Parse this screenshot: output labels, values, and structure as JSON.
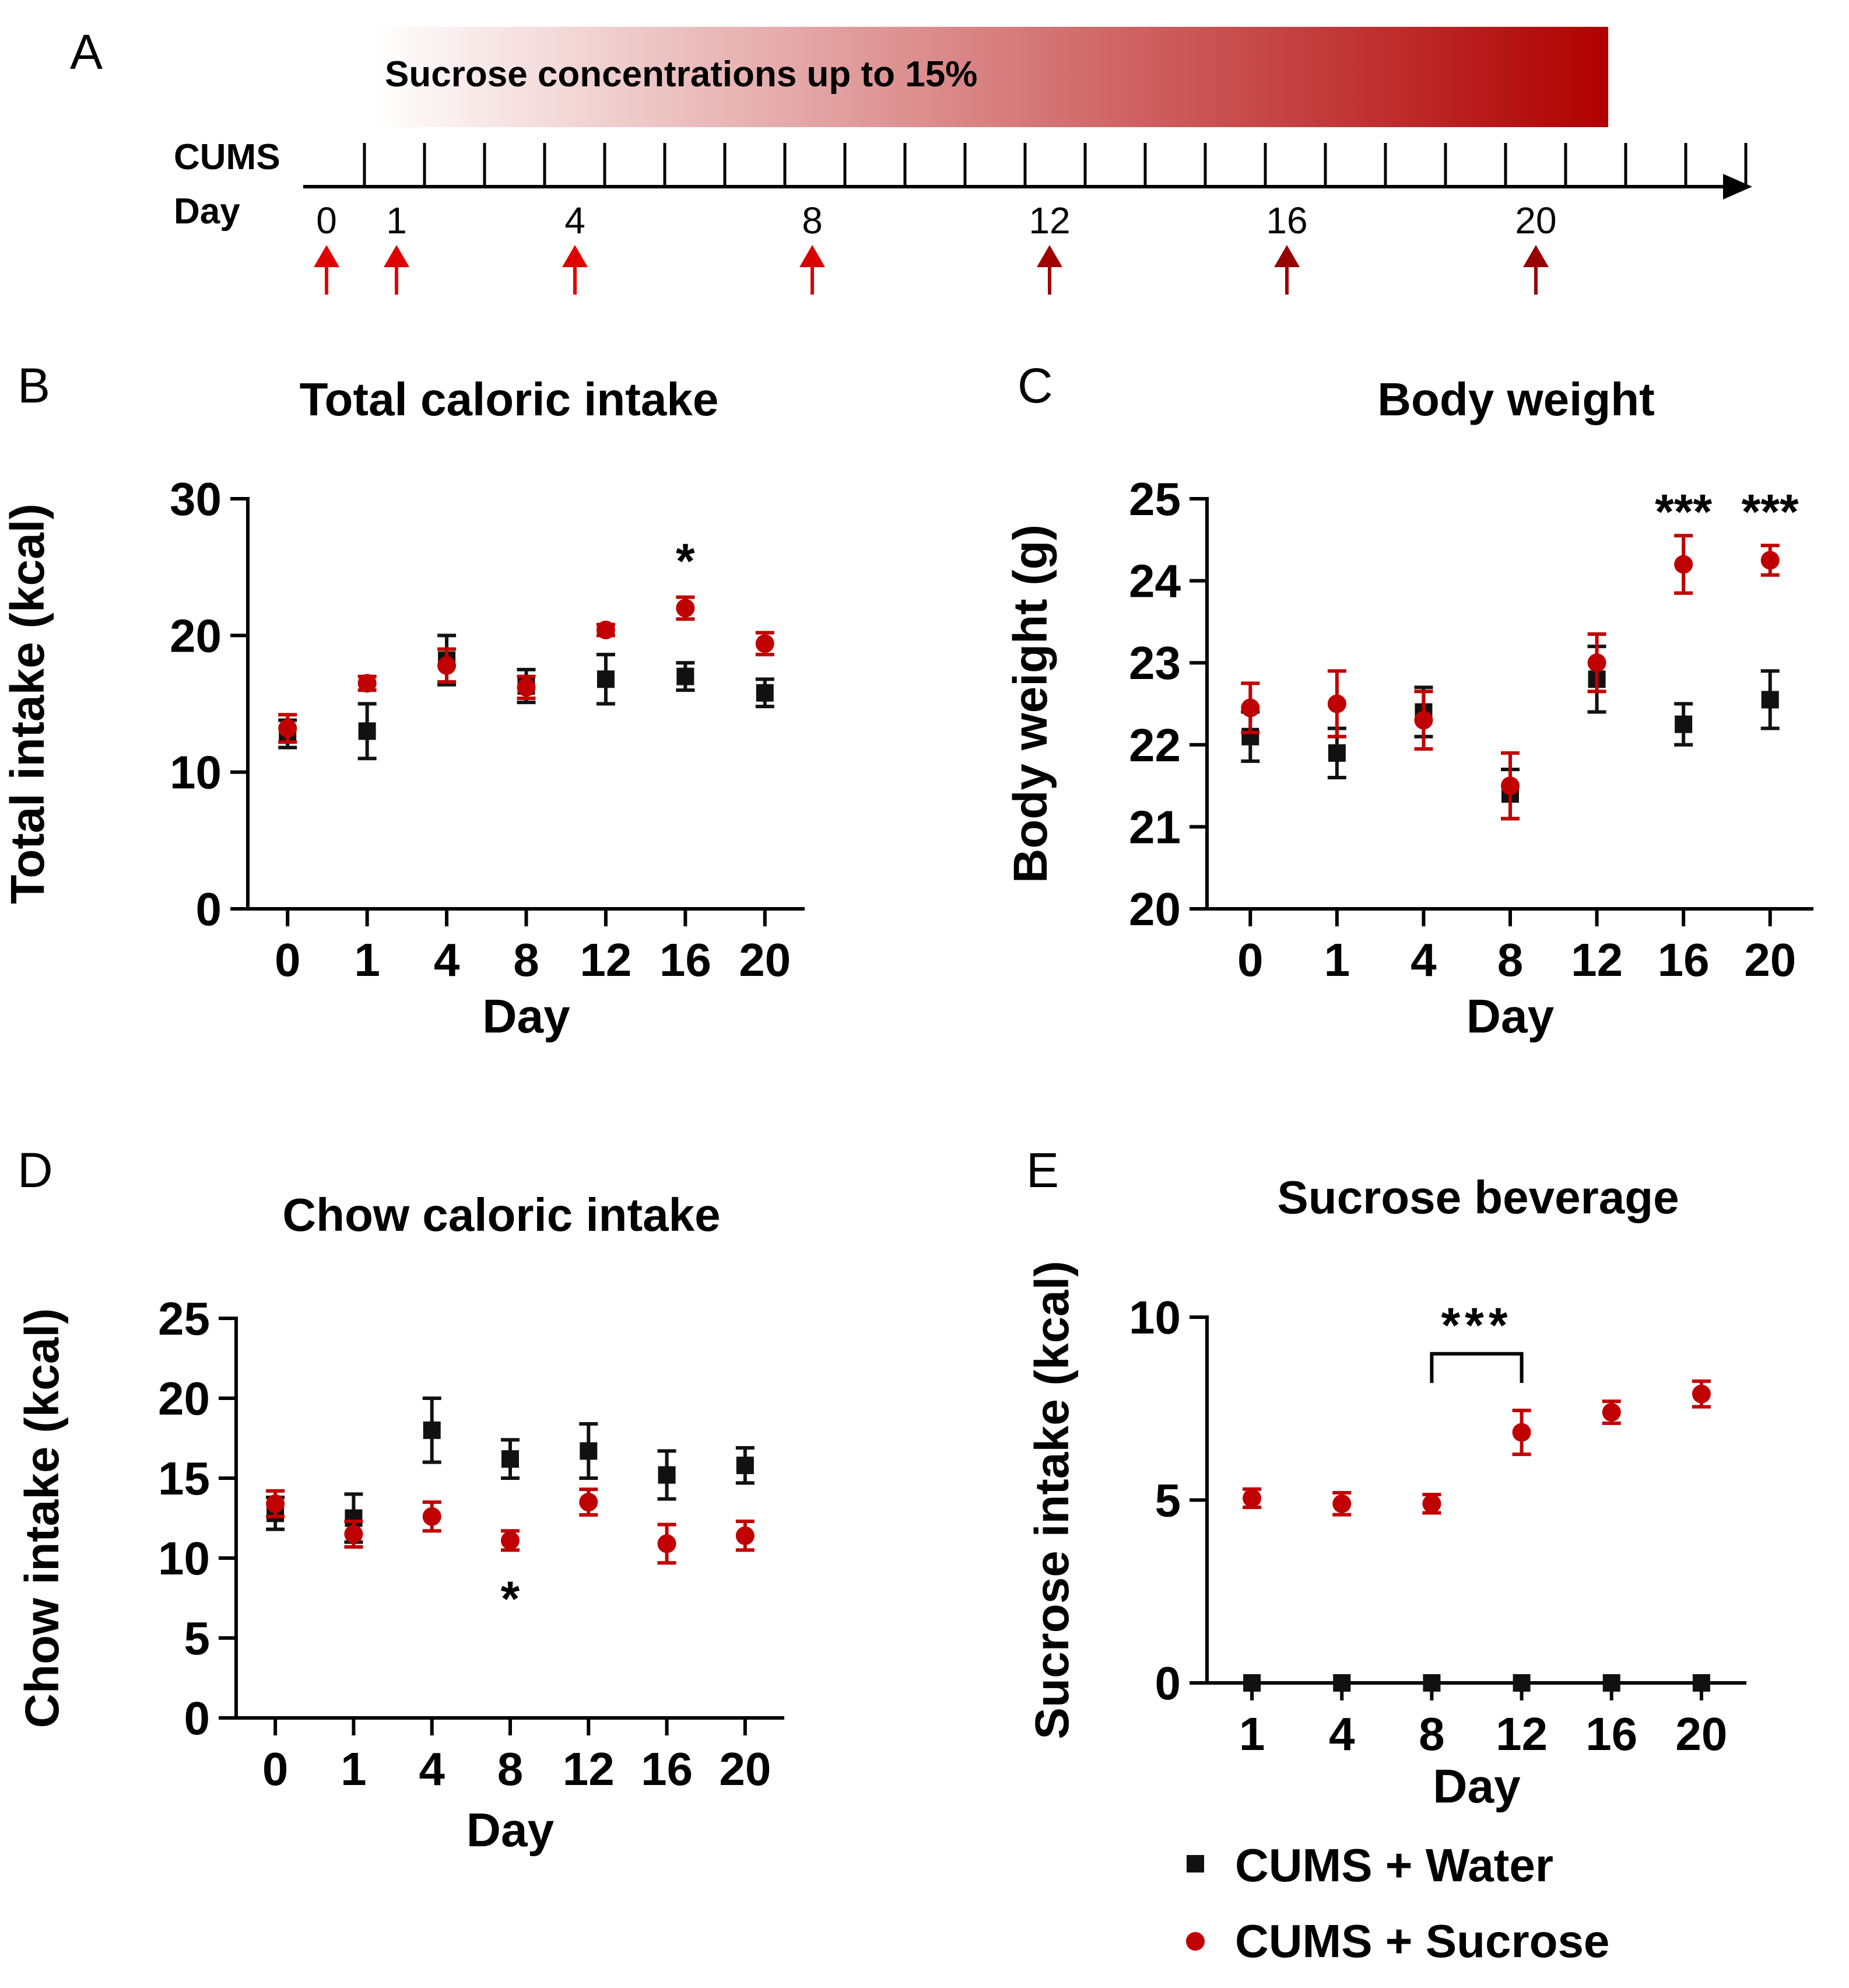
{
  "colors": {
    "water": "#111111",
    "sucrose": "#c00000",
    "gradient_start": "#ffffff",
    "gradient_end": "#b00000"
  },
  "timeline": {
    "letter": "A",
    "banner": "Sucrose concentrations up to 15%",
    "row_label_1": "CUMS",
    "row_label_2": "Day",
    "days": [
      "0",
      "1",
      "4",
      "8",
      "12",
      "16",
      "20"
    ]
  },
  "legend": {
    "water": "CUMS + Water",
    "sucrose": "CUMS + Sucrose"
  },
  "chart_data": [
    {
      "id": "B",
      "type": "scatter",
      "letter": "B",
      "title": "Total caloric intake",
      "xlabel": "Day",
      "ylabel": "Total intake (kcal)",
      "categories": [
        "0",
        "1",
        "4",
        "8",
        "12",
        "16",
        "20"
      ],
      "ylim": [
        0,
        30
      ],
      "yticks": [
        "0",
        "10",
        "20",
        "30"
      ],
      "series": [
        {
          "name": "CUMS + Water",
          "values": [
            12.8,
            13.0,
            18.2,
            16.3,
            16.8,
            17.0,
            15.8
          ],
          "errors": [
            1.0,
            2.0,
            1.8,
            1.2,
            1.8,
            1.0,
            1.0
          ]
        },
        {
          "name": "CUMS + Sucrose",
          "values": [
            13.2,
            16.5,
            17.8,
            16.2,
            20.4,
            22.0,
            19.4
          ],
          "errors": [
            1.0,
            0.5,
            1.2,
            0.8,
            0.4,
            0.8,
            0.8
          ]
        }
      ],
      "annotations": [
        {
          "text": "*",
          "category": "16",
          "y": 25.5
        }
      ]
    },
    {
      "id": "C",
      "type": "scatter",
      "letter": "C",
      "title": "Body weight",
      "xlabel": "Day",
      "ylabel": "Body weight (g)",
      "categories": [
        "0",
        "1",
        "4",
        "8",
        "12",
        "16",
        "20"
      ],
      "ylim": [
        20,
        25
      ],
      "yticks": [
        "20",
        "21",
        "22",
        "23",
        "24",
        "25"
      ],
      "series": [
        {
          "name": "CUMS + Water",
          "values": [
            22.1,
            21.9,
            22.4,
            21.4,
            22.8,
            22.25,
            22.55
          ],
          "errors": [
            0.3,
            0.3,
            0.3,
            0.3,
            0.4,
            0.25,
            0.35
          ]
        },
        {
          "name": "CUMS + Sucrose",
          "values": [
            22.45,
            22.5,
            22.3,
            21.5,
            23.0,
            24.2,
            24.25
          ],
          "errors": [
            0.3,
            0.4,
            0.35,
            0.4,
            0.35,
            0.35,
            0.18
          ]
        }
      ],
      "annotations": [
        {
          "text": "***",
          "category": "16",
          "y": 24.85
        },
        {
          "text": "***",
          "category": "20",
          "y": 24.85
        }
      ]
    },
    {
      "id": "D",
      "type": "scatter",
      "letter": "D",
      "title": "Chow  caloric intake",
      "xlabel": "Day",
      "ylabel": "Chow intake (kcal)",
      "categories": [
        "0",
        "1",
        "4",
        "8",
        "12",
        "16",
        "20"
      ],
      "ylim": [
        0,
        25
      ],
      "yticks": [
        "0",
        "5",
        "10",
        "15",
        "20",
        "25"
      ],
      "series": [
        {
          "name": "CUMS + Water",
          "values": [
            12.8,
            12.5,
            18.0,
            16.2,
            16.7,
            15.2,
            15.8
          ],
          "errors": [
            1.0,
            1.5,
            2.0,
            1.2,
            1.7,
            1.5,
            1.1
          ]
        },
        {
          "name": "CUMS + Sucrose",
          "values": [
            13.4,
            11.5,
            12.6,
            11.1,
            13.5,
            10.9,
            11.4
          ],
          "errors": [
            0.8,
            0.8,
            0.9,
            0.6,
            0.8,
            1.2,
            0.9
          ]
        }
      ],
      "annotations": [
        {
          "text": "*",
          "category": "8",
          "y": 7.5
        }
      ]
    },
    {
      "id": "E",
      "type": "scatter",
      "letter": "E",
      "title": "Sucrose beverage",
      "xlabel": "Day",
      "ylabel": "Sucrose intake (kcal)",
      "categories": [
        "1",
        "4",
        "8",
        "12",
        "16",
        "20"
      ],
      "ylim": [
        0,
        10
      ],
      "yticks": [
        "0",
        "5",
        "10"
      ],
      "series": [
        {
          "name": "CUMS + Water",
          "values": [
            0,
            0,
            0,
            0,
            0,
            0
          ],
          "errors": [
            0,
            0,
            0,
            0,
            0,
            0
          ]
        },
        {
          "name": "CUMS + Sucrose",
          "values": [
            5.05,
            4.9,
            4.9,
            6.85,
            7.4,
            7.9
          ],
          "errors": [
            0.25,
            0.3,
            0.25,
            0.6,
            0.3,
            0.35
          ]
        }
      ],
      "annotations": [
        {
          "text": "***",
          "bracket": [
            "8",
            "12"
          ],
          "y": 9.0
        }
      ]
    }
  ]
}
